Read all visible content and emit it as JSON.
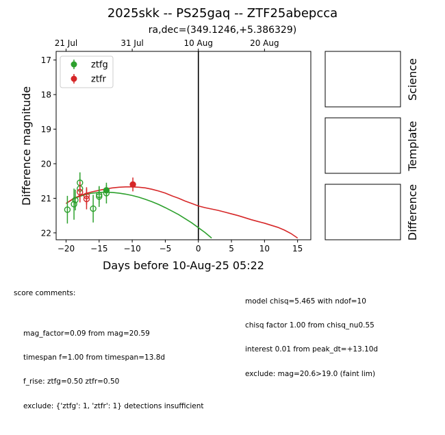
{
  "chart_data": {
    "type": "scatter",
    "title": "2025skk -- PS25gaq -- ZTF25abepcca",
    "subtitle": "ra,dec=(349.1246,+5.386329)",
    "xlabel": "Days before 10-Aug-25 05:22",
    "ylabel": "Difference magnitude",
    "xlim": [
      -21.5,
      17
    ],
    "ylim": [
      22.2,
      16.75
    ],
    "y_inverted": true,
    "x_ticks": [
      -20,
      -15,
      -10,
      -5,
      0,
      5,
      10,
      15
    ],
    "x_tick_labels": [
      "−20",
      "−15",
      "−10",
      "−5",
      "0",
      "5",
      "10",
      "15"
    ],
    "y_ticks": [
      17,
      18,
      19,
      20,
      21,
      22
    ],
    "y_tick_labels": [
      "17",
      "18",
      "19",
      "20",
      "21",
      "22"
    ],
    "top_axis_ticks": [
      -20,
      -10,
      0,
      10
    ],
    "top_axis_labels": [
      "21 Jul",
      "31 Jul",
      "10 Aug",
      "20 Aug"
    ],
    "reference_line_x": 0,
    "legend": {
      "placement": "upper-left",
      "entries": [
        "ztfg",
        "ztfr"
      ]
    },
    "series": [
      {
        "name": "ztfg",
        "color": "#2ca02c",
        "points": [
          {
            "x": -19.8,
            "y": 21.33,
            "err": 0.4,
            "filled": false
          },
          {
            "x": -18.8,
            "y": 21.17,
            "err": 0.45,
            "filled": false
          },
          {
            "x": -18.6,
            "y": 21.05,
            "err": 0.3,
            "filled": false
          },
          {
            "x": -17.9,
            "y": 20.55,
            "err": 0.3,
            "filled": false
          },
          {
            "x": -17.9,
            "y": 20.72,
            "err": 0.3,
            "filled": false
          },
          {
            "x": -15.9,
            "y": 21.3,
            "err": 0.4,
            "filled": false
          },
          {
            "x": -15.0,
            "y": 20.95,
            "err": 0.3,
            "filled": false
          },
          {
            "x": -15.0,
            "y": 20.9,
            "err": 0.25,
            "filled": false
          },
          {
            "x": -13.9,
            "y": 20.85,
            "err": 0.3,
            "filled": false
          },
          {
            "x": -13.9,
            "y": 20.77,
            "err": 0.15,
            "filled": true
          }
        ]
      },
      {
        "name": "ztfr",
        "color": "#d62728",
        "points": [
          {
            "x": -17.9,
            "y": 20.82,
            "err": 0.3,
            "filled": false
          },
          {
            "x": -16.9,
            "y": 20.93,
            "err": 0.25,
            "filled": false
          },
          {
            "x": -16.9,
            "y": 21.02,
            "err": 0.3,
            "filled": false
          },
          {
            "x": -9.9,
            "y": 20.6,
            "err": 0.2,
            "filled": true
          }
        ]
      }
    ],
    "model_curves": [
      {
        "name": "ztfg",
        "color": "#2ca02c",
        "x": [
          -20,
          -19,
          -18,
          -17,
          -16,
          -15,
          -14,
          -13,
          -12,
          -11,
          -10,
          -9,
          -8,
          -7,
          -6,
          -5,
          -4,
          -3,
          -2,
          -1,
          0,
          1,
          2
        ],
        "y": [
          21.15,
          21.03,
          20.95,
          20.89,
          20.85,
          20.83,
          20.82,
          20.83,
          20.85,
          20.88,
          20.92,
          20.97,
          21.03,
          21.1,
          21.18,
          21.27,
          21.37,
          21.47,
          21.59,
          21.71,
          21.85,
          21.99,
          22.15
        ]
      },
      {
        "name": "ztfr",
        "color": "#d62728",
        "x": [
          -20,
          -19,
          -18,
          -17,
          -16,
          -15,
          -14,
          -13,
          -12,
          -11,
          -10,
          -9,
          -8,
          -7,
          -6,
          -5,
          -4,
          -3,
          -2,
          -1,
          0,
          1,
          2,
          3,
          4,
          5,
          6,
          7,
          8,
          9,
          10,
          11,
          12,
          13,
          14,
          15
        ],
        "y": [
          21.15,
          21.02,
          20.93,
          20.86,
          20.81,
          20.77,
          20.73,
          20.7,
          20.68,
          20.67,
          20.67,
          20.68,
          20.7,
          20.74,
          20.79,
          20.85,
          20.93,
          21.0,
          21.08,
          21.15,
          21.22,
          21.27,
          21.31,
          21.35,
          21.4,
          21.45,
          21.5,
          21.56,
          21.62,
          21.67,
          21.72,
          21.78,
          21.84,
          21.92,
          22.02,
          22.15
        ]
      }
    ]
  },
  "panels": {
    "science_label": "Science",
    "template_label": "Template",
    "difference_label": "Difference"
  },
  "comments": {
    "header": "score comments:",
    "left": [
      "mag_factor=0.09 from mag=20.59",
      "timespan f=1.00 from timespan=13.8d",
      "f_rise: ztfg=0.50 ztfr=0.50",
      "exclude: {'ztfg': 1, 'ztfr': 1} detections insufficient"
    ],
    "right": [
      "model chisq=5.465 with ndof=10",
      "chisq factor 1.00 from chisq_nu0.55",
      "interest 0.01 from peak_dt=+13.10d",
      "exclude: mag=20.6>19.0 (faint lim)"
    ]
  }
}
